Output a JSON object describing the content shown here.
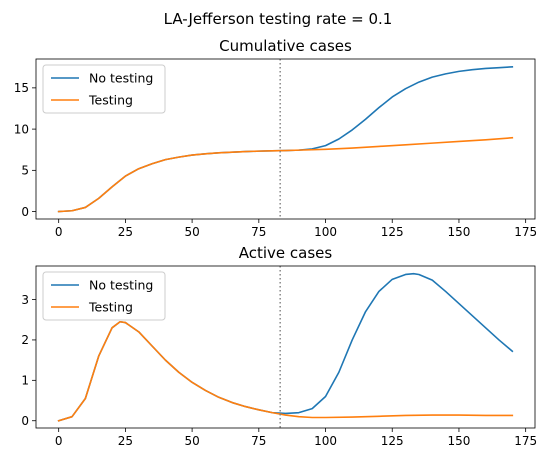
{
  "figure": {
    "suptitle": "LA-Jefferson testing rate = 0.1"
  },
  "chart_data": [
    {
      "type": "line",
      "title": "Cumulative cases",
      "xlabel": "",
      "ylabel": "",
      "xlim": [
        -8.5,
        178.5
      ],
      "ylim": [
        -0.9,
        18.5
      ],
      "xticks": [
        0,
        25,
        50,
        75,
        100,
        125,
        150,
        175
      ],
      "yticks": [
        0,
        5,
        10,
        15
      ],
      "vline": {
        "x": 83,
        "style": "dotted",
        "color": "#7f7f7f"
      },
      "legend": {
        "position": "top-left",
        "entries": [
          "No testing",
          "Testing"
        ]
      },
      "series": [
        {
          "name": "No testing",
          "color": "#1f77b4",
          "points": [
            [
              0,
              0
            ],
            [
              5,
              0.1
            ],
            [
              10,
              0.5
            ],
            [
              15,
              1.6
            ],
            [
              20,
              3.0
            ],
            [
              25,
              4.3
            ],
            [
              30,
              5.2
            ],
            [
              35,
              5.8
            ],
            [
              40,
              6.3
            ],
            [
              45,
              6.6
            ],
            [
              50,
              6.85
            ],
            [
              55,
              7.0
            ],
            [
              60,
              7.12
            ],
            [
              65,
              7.2
            ],
            [
              70,
              7.28
            ],
            [
              75,
              7.33
            ],
            [
              80,
              7.37
            ],
            [
              85,
              7.4
            ],
            [
              90,
              7.45
            ],
            [
              95,
              7.6
            ],
            [
              100,
              8.0
            ],
            [
              105,
              8.8
            ],
            [
              110,
              9.9
            ],
            [
              115,
              11.2
            ],
            [
              120,
              12.6
            ],
            [
              125,
              13.9
            ],
            [
              130,
              14.9
            ],
            [
              135,
              15.7
            ],
            [
              140,
              16.3
            ],
            [
              145,
              16.7
            ],
            [
              150,
              17.0
            ],
            [
              155,
              17.2
            ],
            [
              160,
              17.35
            ],
            [
              165,
              17.45
            ],
            [
              170,
              17.55
            ]
          ]
        },
        {
          "name": "Testing",
          "color": "#ff7f0e",
          "points": [
            [
              0,
              0
            ],
            [
              5,
              0.1
            ],
            [
              10,
              0.5
            ],
            [
              15,
              1.6
            ],
            [
              20,
              3.0
            ],
            [
              25,
              4.3
            ],
            [
              30,
              5.2
            ],
            [
              35,
              5.8
            ],
            [
              40,
              6.3
            ],
            [
              45,
              6.6
            ],
            [
              50,
              6.85
            ],
            [
              55,
              7.0
            ],
            [
              60,
              7.12
            ],
            [
              65,
              7.2
            ],
            [
              70,
              7.28
            ],
            [
              75,
              7.33
            ],
            [
              80,
              7.37
            ],
            [
              85,
              7.4
            ],
            [
              90,
              7.45
            ],
            [
              100,
              7.55
            ],
            [
              110,
              7.7
            ],
            [
              120,
              7.9
            ],
            [
              130,
              8.1
            ],
            [
              140,
              8.3
            ],
            [
              150,
              8.5
            ],
            [
              160,
              8.7
            ],
            [
              170,
              8.95
            ]
          ]
        }
      ]
    },
    {
      "type": "line",
      "title": "Active cases",
      "xlabel": "",
      "ylabel": "",
      "xlim": [
        -8.5,
        178.5
      ],
      "ylim": [
        -0.18,
        3.83
      ],
      "xticks": [
        0,
        25,
        50,
        75,
        100,
        125,
        150,
        175
      ],
      "yticks": [
        0,
        1,
        2,
        3
      ],
      "vline": {
        "x": 83,
        "style": "dotted",
        "color": "#7f7f7f"
      },
      "legend": {
        "position": "top-left",
        "entries": [
          "No testing",
          "Testing"
        ]
      },
      "series": [
        {
          "name": "No testing",
          "color": "#1f77b4",
          "points": [
            [
              0,
              0
            ],
            [
              5,
              0.1
            ],
            [
              10,
              0.55
            ],
            [
              15,
              1.6
            ],
            [
              20,
              2.3
            ],
            [
              23,
              2.45
            ],
            [
              25,
              2.43
            ],
            [
              30,
              2.2
            ],
            [
              35,
              1.85
            ],
            [
              40,
              1.5
            ],
            [
              45,
              1.2
            ],
            [
              50,
              0.95
            ],
            [
              55,
              0.75
            ],
            [
              60,
              0.58
            ],
            [
              65,
              0.45
            ],
            [
              70,
              0.35
            ],
            [
              75,
              0.27
            ],
            [
              80,
              0.2
            ],
            [
              85,
              0.18
            ],
            [
              90,
              0.2
            ],
            [
              95,
              0.3
            ],
            [
              100,
              0.6
            ],
            [
              105,
              1.2
            ],
            [
              110,
              2.0
            ],
            [
              115,
              2.7
            ],
            [
              120,
              3.2
            ],
            [
              125,
              3.5
            ],
            [
              130,
              3.62
            ],
            [
              133,
              3.64
            ],
            [
              135,
              3.62
            ],
            [
              140,
              3.48
            ],
            [
              145,
              3.2
            ],
            [
              150,
              2.9
            ],
            [
              155,
              2.6
            ],
            [
              160,
              2.3
            ],
            [
              165,
              2.0
            ],
            [
              170,
              1.72
            ]
          ]
        },
        {
          "name": "Testing",
          "color": "#ff7f0e",
          "points": [
            [
              0,
              0
            ],
            [
              5,
              0.1
            ],
            [
              10,
              0.55
            ],
            [
              15,
              1.6
            ],
            [
              20,
              2.3
            ],
            [
              23,
              2.45
            ],
            [
              25,
              2.43
            ],
            [
              30,
              2.2
            ],
            [
              35,
              1.85
            ],
            [
              40,
              1.5
            ],
            [
              45,
              1.2
            ],
            [
              50,
              0.95
            ],
            [
              55,
              0.75
            ],
            [
              60,
              0.58
            ],
            [
              65,
              0.45
            ],
            [
              70,
              0.35
            ],
            [
              75,
              0.27
            ],
            [
              80,
              0.2
            ],
            [
              85,
              0.14
            ],
            [
              90,
              0.1
            ],
            [
              95,
              0.08
            ],
            [
              100,
              0.08
            ],
            [
              110,
              0.09
            ],
            [
              120,
              0.11
            ],
            [
              130,
              0.13
            ],
            [
              140,
              0.14
            ],
            [
              150,
              0.14
            ],
            [
              160,
              0.13
            ],
            [
              170,
              0.13
            ]
          ]
        }
      ]
    }
  ]
}
